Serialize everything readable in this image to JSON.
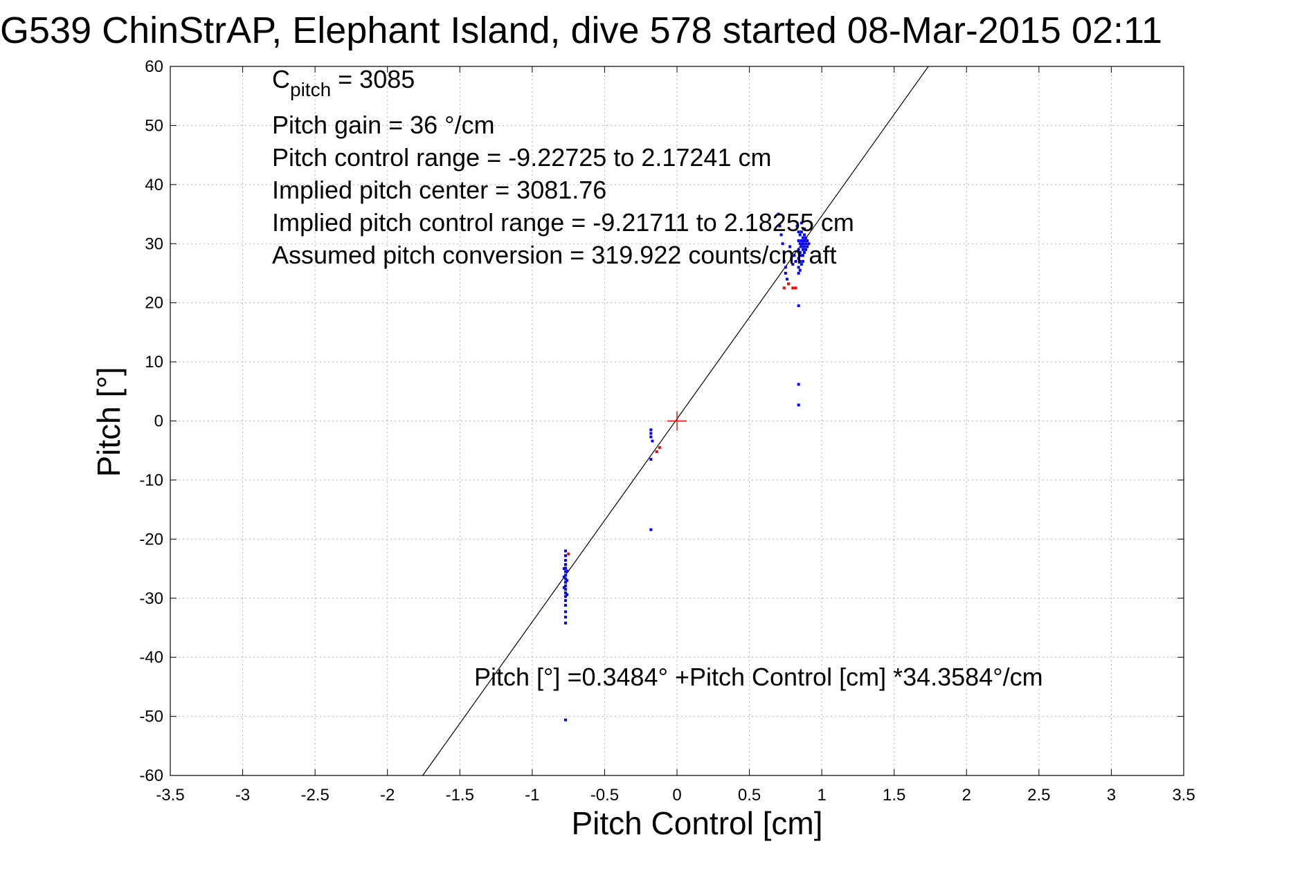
{
  "chart_data": {
    "type": "scatter",
    "title": "G539 ChinStrAP, Elephant Island, dive 578 started 08-Mar-2015 02:11",
    "xlabel": "Pitch Control [cm]",
    "ylabel": "Pitch [°]",
    "xlim": [
      -3.5,
      3.5
    ],
    "ylim": [
      -60,
      60
    ],
    "xticks": [
      -3.5,
      -3,
      -2.5,
      -2,
      -1.5,
      -1,
      -0.5,
      0,
      0.5,
      1,
      1.5,
      2,
      2.5,
      3,
      3.5
    ],
    "xtick_labels": [
      "-3.5",
      "-3",
      "-2.5",
      "-2",
      "-1.5",
      "-1",
      "-0.5",
      "0",
      "0.5",
      "1",
      "1.5",
      "2",
      "2.5",
      "3",
      "3.5"
    ],
    "yticks": [
      -60,
      -50,
      -40,
      -30,
      -20,
      -10,
      0,
      10,
      20,
      30,
      40,
      50,
      60
    ],
    "ytick_labels": [
      "-60",
      "-50",
      "-40",
      "-30",
      "-20",
      "-10",
      "0",
      "10",
      "20",
      "30",
      "40",
      "50",
      "60"
    ],
    "grid": true,
    "colors": {
      "blue": "#0000ff",
      "red": "#ff0000",
      "line": "#000000",
      "grid": "#b0b0b0"
    },
    "annotations": {
      "cpitch_prefix": "C",
      "cpitch_sub": "pitch",
      "cpitch_value": " = 3085",
      "pitch_gain": "Pitch gain = 36 °/cm",
      "control_range": "Pitch control range = -9.22725 to 2.17241 cm",
      "implied_center": "Implied pitch center = 3081.76",
      "implied_range": "Implied pitch control range = -9.21711 to 2.18255 cm",
      "conversion": "Assumed pitch conversion = 319.922 counts/cm aft",
      "equation": "Pitch [°] =0.3484° +Pitch Control [cm] *34.3584°/cm"
    },
    "fit": {
      "intercept": 0.3484,
      "slope": 34.3584
    },
    "center_marker": {
      "x": 0,
      "y": 0
    },
    "series": [
      {
        "color": "blue",
        "points": [
          [
            -0.77,
            -22.0
          ],
          [
            -0.77,
            -22.8
          ],
          [
            -0.77,
            -23.6
          ],
          [
            -0.77,
            -24.3
          ],
          [
            -0.77,
            -24.9
          ],
          [
            -0.77,
            -25.5
          ],
          [
            -0.77,
            -26.1
          ],
          [
            -0.77,
            -26.7
          ],
          [
            -0.77,
            -27.3
          ],
          [
            -0.77,
            -27.9
          ],
          [
            -0.77,
            -28.5
          ],
          [
            -0.77,
            -29.1
          ],
          [
            -0.77,
            -29.7
          ],
          [
            -0.77,
            -30.4
          ],
          [
            -0.77,
            -31.2
          ],
          [
            -0.77,
            -32.3
          ],
          [
            -0.77,
            -33.2
          ],
          [
            -0.77,
            -34.2
          ],
          [
            -0.78,
            -25.0
          ],
          [
            -0.76,
            -25.4
          ],
          [
            -0.78,
            -26.4
          ],
          [
            -0.76,
            -27.0
          ],
          [
            -0.78,
            -28.2
          ],
          [
            -0.76,
            -29.4
          ],
          [
            -0.77,
            -50.6
          ],
          [
            -0.18,
            -1.5
          ],
          [
            -0.18,
            -2.1
          ],
          [
            -0.18,
            -2.7
          ],
          [
            -0.17,
            -3.4
          ],
          [
            -0.18,
            -6.5
          ],
          [
            -0.18,
            -18.4
          ],
          [
            0.7,
            35.0
          ],
          [
            0.71,
            33.0
          ],
          [
            0.72,
            31.5
          ],
          [
            0.73,
            30.0
          ],
          [
            0.74,
            28.5
          ],
          [
            0.74,
            27.0
          ],
          [
            0.75,
            26.0
          ],
          [
            0.75,
            25.0
          ],
          [
            0.76,
            24.0
          ],
          [
            0.78,
            29.5
          ],
          [
            0.79,
            27.5
          ],
          [
            0.8,
            26.5
          ],
          [
            0.81,
            28.0
          ],
          [
            0.82,
            27.0
          ],
          [
            0.83,
            33.0
          ],
          [
            0.84,
            32.0
          ],
          [
            0.84,
            30.5
          ],
          [
            0.84,
            29.0
          ],
          [
            0.84,
            27.5
          ],
          [
            0.84,
            26.0
          ],
          [
            0.84,
            25.0
          ],
          [
            0.85,
            31.5
          ],
          [
            0.85,
            30.0
          ],
          [
            0.85,
            28.5
          ],
          [
            0.85,
            27.0
          ],
          [
            0.85,
            25.5
          ],
          [
            0.86,
            33.5
          ],
          [
            0.86,
            32.0
          ],
          [
            0.86,
            30.5
          ],
          [
            0.86,
            29.5
          ],
          [
            0.86,
            28.0
          ],
          [
            0.86,
            26.5
          ],
          [
            0.87,
            31.0
          ],
          [
            0.87,
            30.0
          ],
          [
            0.87,
            29.0
          ],
          [
            0.87,
            28.0
          ],
          [
            0.87,
            27.0
          ],
          [
            0.88,
            32.5
          ],
          [
            0.88,
            31.5
          ],
          [
            0.88,
            30.5
          ],
          [
            0.88,
            29.5
          ],
          [
            0.88,
            28.5
          ],
          [
            0.89,
            31.0
          ],
          [
            0.89,
            30.0
          ],
          [
            0.89,
            29.0
          ],
          [
            0.9,
            30.5
          ],
          [
            0.9,
            29.5
          ],
          [
            0.91,
            30.0
          ],
          [
            0.84,
            19.5
          ],
          [
            0.84,
            6.2
          ],
          [
            0.84,
            2.7
          ]
        ]
      },
      {
        "color": "red",
        "points": [
          [
            -0.75,
            -22.5
          ],
          [
            -0.12,
            -4.5
          ],
          [
            -0.14,
            -5.2
          ],
          [
            0.74,
            22.5
          ],
          [
            0.8,
            22.5
          ],
          [
            0.82,
            22.5
          ],
          [
            0.77,
            23.2
          ]
        ]
      }
    ]
  }
}
